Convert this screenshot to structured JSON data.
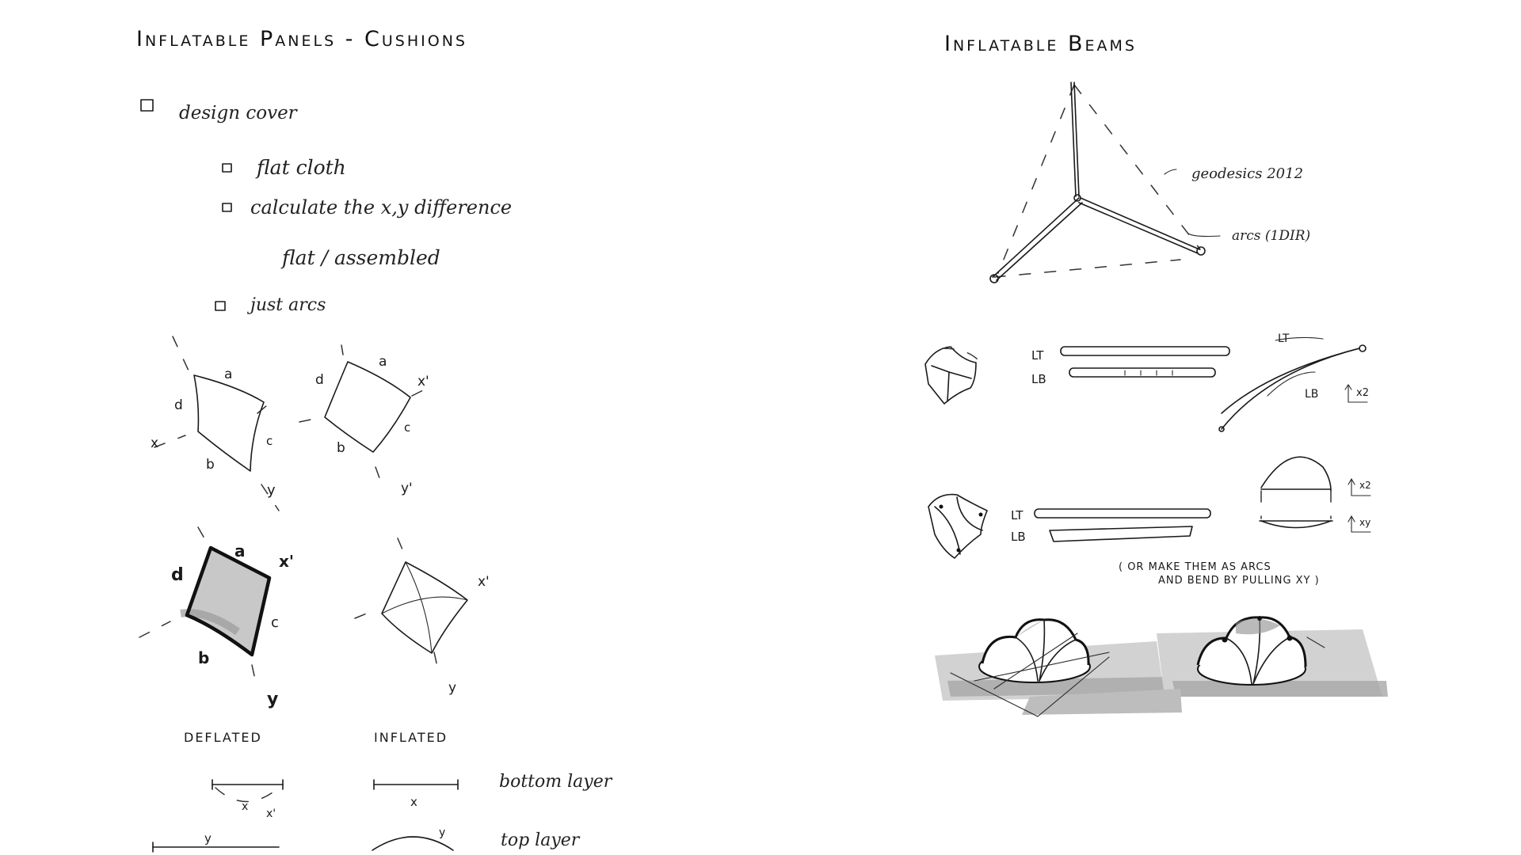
{
  "left_page": {
    "title": "Inflatable Panels - Cushions",
    "checklist": {
      "item1": "design cover",
      "item2": "flat cloth",
      "item3": "calculate the x,y difference",
      "item4": "flat / assembled",
      "item5": "just arcs"
    },
    "sketch_labels": {
      "a": "a",
      "b": "b",
      "c": "c",
      "d": "d",
      "x": "x",
      "y": "y",
      "x_prime": "x'",
      "y_prime": "y'"
    },
    "captions": {
      "deflated": "DEFLATED",
      "inflated": "INFLATED",
      "bottom_layer": "bottom layer",
      "top_layer": "top layer"
    }
  },
  "right_page": {
    "title": "Inflatable Beams",
    "notes": {
      "geodesics": "geodesics 2012",
      "arcs": "arcs (1DIR)",
      "lt": "LT",
      "lb": "LB",
      "x2": "x2",
      "xy": "xy",
      "footnote_line1": "( OR MAKE THEM AS ARCS",
      "footnote_line2": "AND BEND BY PULLING XY )"
    }
  },
  "colors": {
    "ink": "#1a1a1a",
    "fill_gray": "#c8c8c8",
    "shadow_gray": "#9a9a9a"
  }
}
